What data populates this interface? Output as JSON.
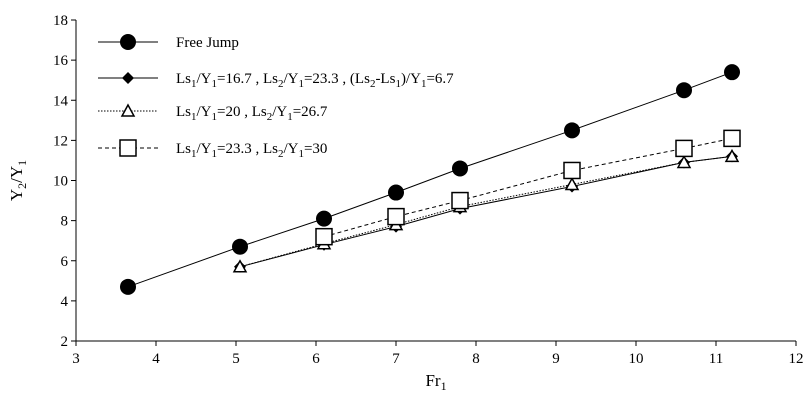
{
  "chart_data": {
    "type": "line",
    "xlabel": "Fr₁",
    "ylabel": "Y₂/Y₁",
    "xlim": [
      3,
      12
    ],
    "ylim": [
      2,
      18
    ],
    "xticks": [
      3,
      4,
      5,
      6,
      7,
      8,
      9,
      10,
      11,
      12
    ],
    "yticks": [
      2,
      4,
      6,
      8,
      10,
      12,
      14,
      16,
      18
    ],
    "grid": false,
    "legend_position": "top-left",
    "series": [
      {
        "name": "Free Jump",
        "marker": "filled-circle",
        "line_style": "solid",
        "color": "#000000",
        "x": [
          3.65,
          5.05,
          6.1,
          7.0,
          7.8,
          9.2,
          10.6,
          11.2
        ],
        "y": [
          4.7,
          6.7,
          8.1,
          9.4,
          10.6,
          12.5,
          14.5,
          15.4
        ]
      },
      {
        "name": "Ls₁/Y₁=16.7 , Ls₂/Y₁=23.3 , (Ls₂-Ls₁)/Y₁=6.7",
        "marker": "filled-diamond",
        "line_style": "solid",
        "color": "#000000",
        "x": [
          5.05,
          6.1,
          7.0,
          7.8,
          9.2,
          10.6,
          11.2
        ],
        "y": [
          5.7,
          6.8,
          7.7,
          8.6,
          9.7,
          10.9,
          11.2
        ]
      },
      {
        "name": "Ls₁/Y₁=20 , Ls₂/Y₁=26.7",
        "marker": "open-triangle",
        "line_style": "dotted",
        "color": "#000000",
        "x": [
          5.05,
          6.1,
          7.0,
          7.8,
          9.2,
          10.6,
          11.2
        ],
        "y": [
          5.7,
          6.85,
          7.8,
          8.7,
          9.8,
          10.9,
          11.2
        ]
      },
      {
        "name": "Ls₁/Y₁=23.3 , Ls₂/Y₁=30",
        "marker": "open-square",
        "line_style": "dashed",
        "color": "#000000",
        "x": [
          6.1,
          7.0,
          7.8,
          9.2,
          10.6,
          11.2
        ],
        "y": [
          7.2,
          8.2,
          9.0,
          10.5,
          11.6,
          12.1
        ]
      }
    ]
  }
}
